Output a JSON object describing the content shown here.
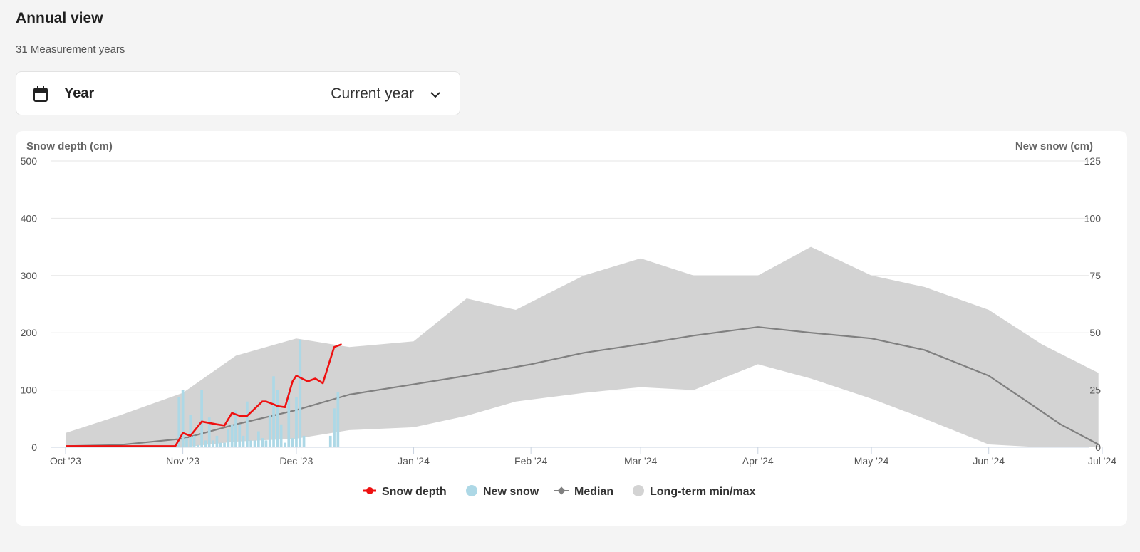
{
  "header": {
    "title": "Annual view",
    "subtitle": "31 Measurement years"
  },
  "selector": {
    "label": "Year",
    "value": "Current year",
    "icon": "calendar-icon"
  },
  "chart_data": {
    "type": "area",
    "y_left_label": "Snow depth (cm)",
    "y_right_label": "New snow (cm)",
    "ylim_left": [
      0,
      500
    ],
    "ylim_right": [
      0,
      125
    ],
    "y_left_ticks": [
      "0",
      "100",
      "200",
      "300",
      "400",
      "500"
    ],
    "y_right_ticks": [
      "0",
      "25",
      "50",
      "75",
      "100",
      "125"
    ],
    "x_ticks": [
      "Oct '23",
      "Nov '23",
      "Dec '23",
      "Jan '24",
      "Feb '24",
      "Mar '24",
      "Apr '24",
      "May '24",
      "Jun '24",
      "Jul '24"
    ],
    "grid": true,
    "legend_position": "bottom",
    "colors": {
      "snow_depth": "#ee1111",
      "new_snow": "#add8e6",
      "median": "#808080",
      "range": "#d3d3d3"
    },
    "series": [
      {
        "name": "Snow depth",
        "type": "line",
        "x": [
          "2023-10-01",
          "2023-10-10",
          "2023-10-20",
          "2023-10-30",
          "2023-11-01",
          "2023-11-03",
          "2023-11-06",
          "2023-11-10",
          "2023-11-12",
          "2023-11-14",
          "2023-11-16",
          "2023-11-18",
          "2023-11-22",
          "2023-11-23",
          "2023-11-25",
          "2023-11-26",
          "2023-11-28",
          "2023-11-30",
          "2023-12-01",
          "2023-12-04",
          "2023-12-06",
          "2023-12-08",
          "2023-12-11",
          "2023-12-13"
        ],
        "y": [
          2,
          2,
          2,
          2,
          25,
          20,
          45,
          40,
          38,
          60,
          55,
          55,
          80,
          80,
          75,
          72,
          70,
          115,
          125,
          115,
          120,
          112,
          175,
          180
        ]
      },
      {
        "name": "New snow",
        "type": "bar",
        "x": [
          "2023-10-31",
          "2023-11-01",
          "2023-11-02",
          "2023-11-03",
          "2023-11-04",
          "2023-11-05",
          "2023-11-06",
          "2023-11-07",
          "2023-11-08",
          "2023-11-09",
          "2023-11-10",
          "2023-11-11",
          "2023-11-12",
          "2023-11-13",
          "2023-11-14",
          "2023-11-15",
          "2023-11-16",
          "2023-11-17",
          "2023-11-18",
          "2023-11-19",
          "2023-11-20",
          "2023-11-21",
          "2023-11-22",
          "2023-11-23",
          "2023-11-24",
          "2023-11-25",
          "2023-11-26",
          "2023-11-27",
          "2023-11-28",
          "2023-11-29",
          "2023-11-30",
          "2023-12-01",
          "2023-12-02",
          "2023-12-03",
          "2023-12-04",
          "2023-12-05",
          "2023-12-06",
          "2023-12-07",
          "2023-12-08",
          "2023-12-09",
          "2023-12-10",
          "2023-12-11",
          "2023-12-12",
          "2023-12-13"
        ],
        "y": [
          22,
          25,
          4,
          14,
          5,
          1,
          25,
          3,
          13,
          3,
          5,
          2,
          2,
          8,
          10,
          16,
          10,
          5,
          20,
          3,
          3,
          7,
          4,
          3,
          14,
          31,
          25,
          10,
          2,
          24,
          4,
          22,
          47,
          5,
          0,
          0,
          0,
          0,
          0,
          0,
          5,
          17,
          24,
          0
        ]
      },
      {
        "name": "Median",
        "type": "line",
        "x": [
          "2023-10-01",
          "2023-10-15",
          "2023-11-01",
          "2023-11-15",
          "2023-12-01",
          "2023-12-15",
          "2024-01-01",
          "2024-01-15",
          "2024-02-01",
          "2024-02-15",
          "2024-03-01",
          "2024-03-15",
          "2024-04-01",
          "2024-04-15",
          "2024-05-01",
          "2024-05-15",
          "2024-06-01",
          "2024-06-10",
          "2024-06-20",
          "2024-06-30"
        ],
        "y": [
          2,
          4,
          15,
          40,
          65,
          92,
          110,
          125,
          145,
          165,
          180,
          195,
          210,
          200,
          190,
          170,
          125,
          85,
          40,
          5
        ]
      },
      {
        "name": "Long-term min/max",
        "type": "arearange",
        "x": [
          "2023-10-01",
          "2023-10-15",
          "2023-11-01",
          "2023-11-15",
          "2023-12-01",
          "2023-12-15",
          "2024-01-01",
          "2024-01-15",
          "2024-01-28",
          "2024-02-15",
          "2024-03-01",
          "2024-03-15",
          "2024-04-01",
          "2024-04-15",
          "2024-05-01",
          "2024-05-15",
          "2024-06-01",
          "2024-06-15",
          "2024-06-30"
        ],
        "low": [
          0,
          0,
          0,
          10,
          15,
          30,
          35,
          55,
          80,
          95,
          105,
          100,
          145,
          120,
          85,
          50,
          5,
          0,
          0
        ],
        "high": [
          25,
          55,
          95,
          160,
          190,
          175,
          185,
          260,
          240,
          300,
          330,
          300,
          300,
          350,
          300,
          280,
          240,
          180,
          130
        ]
      }
    ]
  },
  "legend": {
    "items": [
      {
        "label": "Snow depth",
        "icon": "red-line-dot-icon"
      },
      {
        "label": "New snow",
        "icon": "blue-dot-icon"
      },
      {
        "label": "Median",
        "icon": "gray-line-diamond-icon"
      },
      {
        "label": "Long-term min/max",
        "icon": "gray-dot-icon"
      }
    ]
  }
}
